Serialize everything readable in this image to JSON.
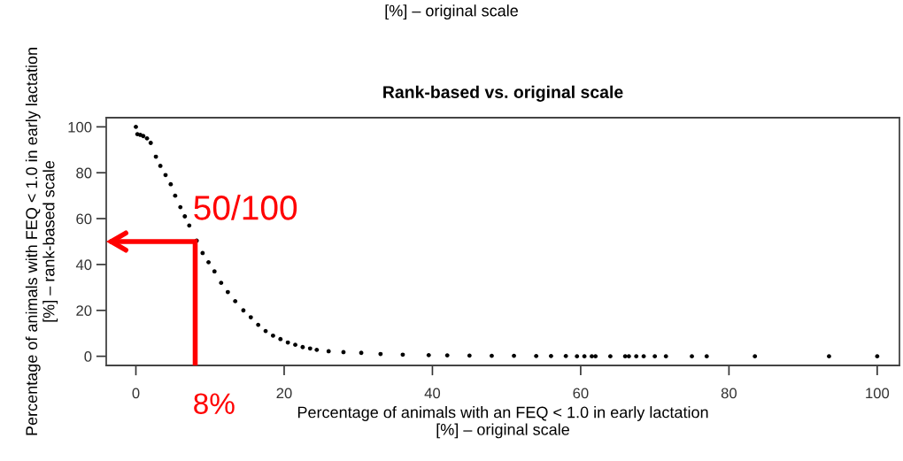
{
  "chart_data": {
    "type": "scatter",
    "title": "Rank-based vs. original scale",
    "xlabel": "Percentage of animals with an FEQ < 1.0 in early lactation\n[%] – original scale",
    "ylabel": "Percentage of animals with FEQ < 1.0 in early lactation\n[%] – rank-based scale",
    "series": [
      {
        "color": "#000000",
        "x": [
          0,
          0.2,
          0.6,
          1,
          1.5,
          2,
          2.7,
          3.3,
          4,
          4.7,
          5.3,
          6,
          6.6,
          7.2,
          8.2,
          9,
          9.8,
          10.6,
          11.5,
          12.4,
          13.4,
          14.5,
          15.5,
          16.5,
          17.5,
          18.5,
          19.5,
          20.5,
          21.5,
          22.5,
          23.5,
          24.4,
          26,
          28,
          30.4,
          33,
          36,
          39.5,
          42,
          45,
          48,
          51,
          54,
          56,
          58,
          59.5,
          60.5,
          61.5,
          62,
          64,
          66,
          66.5,
          67.5,
          68.5,
          70,
          71.5,
          75,
          77,
          83.5,
          93.5,
          100
        ],
        "values": [
          100,
          96.8,
          96.5,
          96,
          95,
          93,
          87,
          83,
          79,
          75,
          70,
          65,
          61,
          57,
          50.4,
          45,
          41,
          37,
          32,
          28,
          24,
          20,
          17,
          13.7,
          11,
          9,
          7.5,
          6,
          5,
          4,
          3.4,
          2.8,
          2.2,
          1.8,
          1.5,
          1,
          0.7,
          0.5,
          0.4,
          0.3,
          0.2,
          0.2,
          0.1,
          0.1,
          0.1,
          0,
          0,
          0,
          0,
          0,
          0,
          0,
          0,
          0,
          0,
          0,
          0,
          0,
          0,
          0,
          0
        ]
      }
    ],
    "xlim": [
      -4,
      103
    ],
    "ylim": [
      -4,
      104
    ],
    "xticks": [
      0,
      20,
      40,
      60,
      80,
      100
    ],
    "yticks": [
      0,
      20,
      40,
      60,
      80,
      100
    ],
    "grid": false,
    "legend": false,
    "marker": "circle",
    "annotations": [
      "[%] – original scale",
      {
        "text": "50/100",
        "x": 8,
        "y": 50
      },
      "8%"
    ]
  }
}
